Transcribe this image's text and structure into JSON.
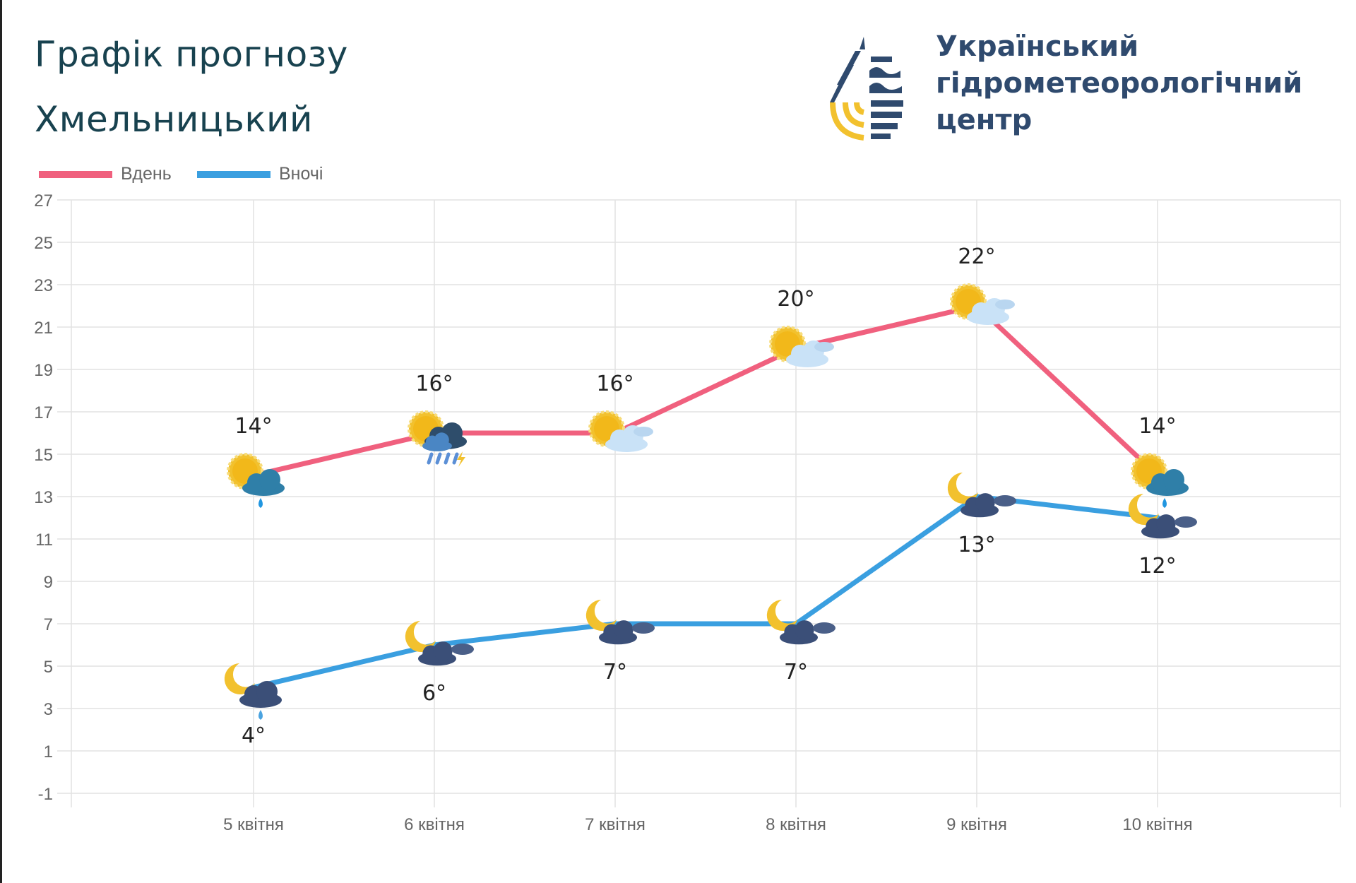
{
  "header": {
    "title": "Графік прогнозу",
    "city": "Хмельницький"
  },
  "logo": {
    "org_line1": "Український",
    "org_line2": "гідрометеорологічний",
    "org_line3": "центр"
  },
  "chart_data": {
    "type": "line",
    "title": "Графік прогнозу",
    "categories": [
      "5 квітня",
      "6 квітня",
      "7 квітня",
      "8 квітня",
      "9 квітня",
      "10 квітня"
    ],
    "ylim": [
      -1,
      27
    ],
    "yticks": [
      27,
      25,
      23,
      21,
      19,
      17,
      15,
      13,
      11,
      9,
      7,
      5,
      3,
      1,
      -1
    ],
    "grid": true,
    "legend_placement": "top-left",
    "series": [
      {
        "name": "Вдень",
        "color": "#f0607e",
        "values": [
          14,
          16,
          16,
          20,
          22,
          14
        ],
        "labels": [
          "14°",
          "16°",
          "16°",
          "20°",
          "22°",
          "14°"
        ],
        "icons": [
          "sun-cloud-rain-icon",
          "sun-storm-icon",
          "sun-cloud-icon",
          "sun-cloud-icon",
          "sun-cloud-icon",
          "sun-cloud-rain-icon"
        ]
      },
      {
        "name": "Вночі",
        "color": "#3a9fe0",
        "values": [
          4,
          6,
          7,
          7,
          13,
          12
        ],
        "labels": [
          "4°",
          "6°",
          "7°",
          "7°",
          "13°",
          "12°"
        ],
        "icons": [
          "moon-cloud-rain-icon",
          "moon-cloud-icon",
          "moon-cloud-icon",
          "moon-cloud-icon",
          "moon-cloud-icon",
          "moon-cloud-icon"
        ]
      }
    ]
  }
}
